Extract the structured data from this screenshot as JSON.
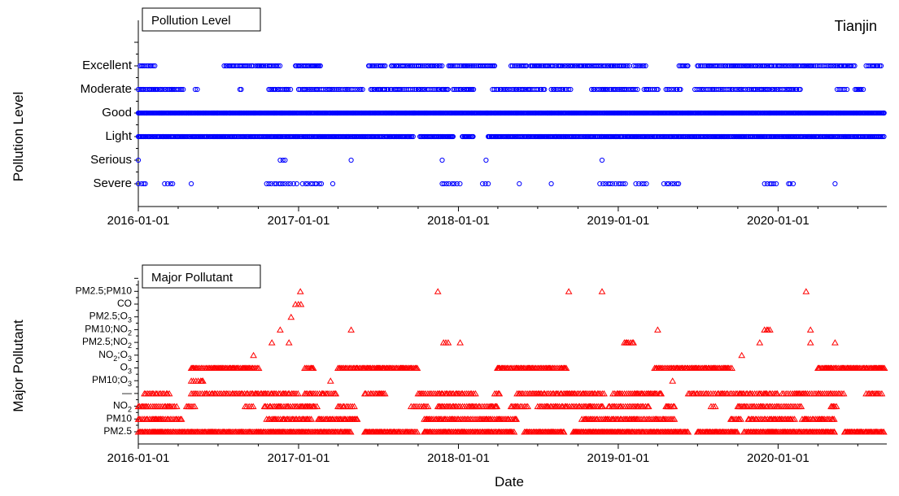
{
  "chart_data": [
    {
      "type": "scatter",
      "title": "Pollution Level",
      "annotation": "Tianjin",
      "xlabel": "",
      "ylabel": "Pollution Level",
      "x_type": "date",
      "xlim": [
        "2016-01-01",
        "2020-08-31"
      ],
      "x_ticks": [
        "2016-01-01",
        "2017-01-01",
        "2018-01-01",
        "2019-01-01",
        "2020-01-01"
      ],
      "y_categories": [
        "Severe",
        "Serious",
        "Light",
        "Good",
        "Moderate",
        "Excellent"
      ],
      "marker": "circle",
      "color": "#0000ff",
      "series": [
        {
          "category": "Excellent",
          "ranges": [
            [
              "2016-01-05",
              "2016-02-10"
            ],
            [
              "2016-07-15",
              "2016-09-20"
            ],
            [
              "2016-09-25",
              "2016-11-20"
            ],
            [
              "2016-12-25",
              "2017-02-20"
            ],
            [
              "2017-06-10",
              "2017-07-20"
            ],
            [
              "2017-08-01",
              "2017-11-25"
            ],
            [
              "2017-12-10",
              "2018-03-25"
            ],
            [
              "2018-05-01",
              "2018-06-10"
            ],
            [
              "2018-06-15",
              "2018-10-30"
            ],
            [
              "2018-11-01",
              "2019-01-30"
            ],
            [
              "2019-02-05",
              "2019-03-05"
            ],
            [
              "2019-05-20",
              "2019-06-10"
            ],
            [
              "2019-07-01",
              "2020-02-20"
            ],
            [
              "2020-02-25",
              "2020-06-25"
            ],
            [
              "2020-07-20",
              "2020-08-25"
            ]
          ]
        },
        {
          "category": "Moderate",
          "ranges": [
            [
              "2016-01-01",
              "2016-04-15"
            ],
            [
              "2016-05-10",
              "2016-05-15"
            ],
            [
              "2016-08-20",
              "2016-08-25"
            ],
            [
              "2016-10-25",
              "2016-12-15"
            ],
            [
              "2017-01-01",
              "2017-05-30"
            ],
            [
              "2017-06-15",
              "2017-12-10"
            ],
            [
              "2017-12-20",
              "2018-02-05"
            ],
            [
              "2018-03-20",
              "2018-07-20"
            ],
            [
              "2018-08-01",
              "2018-09-15"
            ],
            [
              "2018-11-01",
              "2019-02-15"
            ],
            [
              "2019-03-01",
              "2019-04-05"
            ],
            [
              "2019-04-20",
              "2019-05-25"
            ],
            [
              "2019-06-25",
              "2020-02-25"
            ],
            [
              "2020-05-15",
              "2020-06-10"
            ],
            [
              "2020-06-25",
              "2020-07-15"
            ]
          ]
        },
        {
          "category": "Good",
          "ranges": [
            [
              "2016-01-01",
              "2020-08-31"
            ]
          ]
        },
        {
          "category": "Light",
          "ranges": [
            [
              "2016-01-01",
              "2017-09-20"
            ],
            [
              "2017-10-05",
              "2017-12-20"
            ],
            [
              "2018-01-10",
              "2018-02-05"
            ],
            [
              "2018-03-10",
              "2020-08-31"
            ]
          ]
        },
        {
          "category": "Serious",
          "ranges": [
            [
              "2016-01-01",
              "2016-01-02"
            ],
            [
              "2016-11-20",
              "2016-12-05"
            ],
            [
              "2017-05-01",
              "2017-05-02"
            ],
            [
              "2017-11-25",
              "2017-11-26"
            ],
            [
              "2018-03-05",
              "2018-03-06"
            ],
            [
              "2018-11-25",
              "2018-11-26"
            ]
          ]
        },
        {
          "category": "Severe",
          "ranges": [
            [
              "2016-01-01",
              "2016-01-20"
            ],
            [
              "2016-03-01",
              "2016-03-20"
            ],
            [
              "2016-05-01",
              "2016-05-02"
            ],
            [
              "2016-10-20",
              "2016-12-30"
            ],
            [
              "2017-01-10",
              "2017-02-25"
            ],
            [
              "2017-03-20",
              "2017-03-21"
            ],
            [
              "2017-11-25",
              "2018-01-05"
            ],
            [
              "2018-02-25",
              "2018-03-15"
            ],
            [
              "2018-05-20",
              "2018-05-21"
            ],
            [
              "2018-08-01",
              "2018-08-02"
            ],
            [
              "2018-11-20",
              "2019-01-20"
            ],
            [
              "2019-02-10",
              "2019-03-10"
            ],
            [
              "2019-04-15",
              "2019-05-20"
            ],
            [
              "2019-12-01",
              "2019-12-30"
            ],
            [
              "2020-01-25",
              "2020-02-05"
            ],
            [
              "2020-05-10",
              "2020-05-11"
            ]
          ]
        }
      ]
    },
    {
      "type": "scatter",
      "title": "Major Pollutant",
      "xlabel": "Date",
      "ylabel": "Major Pollutant",
      "x_type": "date",
      "xlim": [
        "2016-01-01",
        "2020-08-31"
      ],
      "x_ticks": [
        "2016-01-01",
        "2017-01-01",
        "2018-01-01",
        "2019-01-01",
        "2020-01-01"
      ],
      "y_categories": [
        "PM2.5",
        "PM10",
        "NO2",
        "—",
        "PM10;O3",
        "O3",
        "NO2;O3",
        "PM2.5;NO2",
        "PM10;NO2",
        "PM2.5;O3",
        "CO",
        "PM2.5;PM10"
      ],
      "marker": "triangle",
      "color": "#ff0000",
      "series": [
        {
          "category": "PM2.5",
          "ranges": [
            [
              "2016-01-01",
              "2017-05-01"
            ],
            [
              "2017-06-01",
              "2017-09-30"
            ],
            [
              "2017-10-15",
              "2018-05-10"
            ],
            [
              "2018-06-01",
              "2018-09-01"
            ],
            [
              "2018-09-20",
              "2019-06-10"
            ],
            [
              "2019-07-01",
              "2019-09-30"
            ],
            [
              "2019-10-15",
              "2020-05-10"
            ],
            [
              "2020-06-01",
              "2020-08-31"
            ]
          ]
        },
        {
          "category": "PM10",
          "ranges": [
            [
              "2016-01-01",
              "2016-04-10"
            ],
            [
              "2016-10-20",
              "2017-01-31"
            ],
            [
              "2017-02-15",
              "2017-05-15"
            ],
            [
              "2017-10-15",
              "2018-05-15"
            ],
            [
              "2018-10-10",
              "2019-05-10"
            ],
            [
              "2019-09-15",
              "2019-10-10"
            ],
            [
              "2019-10-25",
              "2020-02-10"
            ],
            [
              "2020-02-25",
              "2020-05-10"
            ]
          ]
        },
        {
          "category": "NO2",
          "ranges": [
            [
              "2016-01-01",
              "2016-03-31"
            ],
            [
              "2016-04-20",
              "2016-05-10"
            ],
            [
              "2016-09-01",
              "2016-09-20"
            ],
            [
              "2016-10-15",
              "2017-02-15"
            ],
            [
              "2017-04-01",
              "2017-05-10"
            ],
            [
              "2017-09-15",
              "2017-10-25"
            ],
            [
              "2017-11-15",
              "2018-03-31"
            ],
            [
              "2018-05-01",
              "2018-06-10"
            ],
            [
              "2018-07-01",
              "2018-11-30"
            ],
            [
              "2018-12-10",
              "2019-03-15"
            ],
            [
              "2019-04-20",
              "2019-05-10"
            ],
            [
              "2019-08-01",
              "2019-08-15"
            ],
            [
              "2019-10-01",
              "2020-02-25"
            ],
            [
              "2020-05-01",
              "2020-05-15"
            ]
          ]
        },
        {
          "category": "—",
          "ranges": [
            [
              "2016-01-15",
              "2016-03-15"
            ],
            [
              "2016-05-01",
              "2016-12-31"
            ],
            [
              "2017-01-15",
              "2017-03-31"
            ],
            [
              "2017-06-01",
              "2017-07-20"
            ],
            [
              "2017-10-01",
              "2018-02-10"
            ],
            [
              "2018-03-25",
              "2018-04-05"
            ],
            [
              "2018-05-15",
              "2018-11-30"
            ],
            [
              "2018-12-20",
              "2019-04-10"
            ],
            [
              "2019-06-10",
              "2019-12-31"
            ],
            [
              "2020-01-10",
              "2020-05-31"
            ],
            [
              "2020-07-20",
              "2020-08-25"
            ]
          ]
        },
        {
          "category": "PM10;O3",
          "ranges": [
            [
              "2016-05-01",
              "2016-05-31"
            ],
            [
              "2017-03-15",
              "2017-03-16"
            ],
            [
              "2019-05-05",
              "2019-05-06"
            ]
          ]
        },
        {
          "category": "O3",
          "ranges": [
            [
              "2016-05-01",
              "2016-10-05"
            ],
            [
              "2017-01-15",
              "2017-02-05"
            ],
            [
              "2017-04-01",
              "2017-09-30"
            ],
            [
              "2018-03-31",
              "2018-09-05"
            ],
            [
              "2019-03-25",
              "2019-09-20"
            ],
            [
              "2020-04-01",
              "2020-08-31"
            ]
          ]
        },
        {
          "category": "NO2;O3",
          "ranges": [
            [
              "2016-09-20",
              "2016-09-21"
            ],
            [
              "2019-10-10",
              "2019-10-11"
            ]
          ]
        },
        {
          "category": "PM2.5;NO2",
          "ranges": [
            [
              "2016-11-01",
              "2016-11-02"
            ],
            [
              "2016-12-10",
              "2016-12-11"
            ],
            [
              "2017-11-28",
              "2017-12-10"
            ],
            [
              "2018-01-05",
              "2018-01-06"
            ],
            [
              "2019-01-15",
              "2019-02-05"
            ],
            [
              "2019-11-20",
              "2019-11-21"
            ],
            [
              "2020-03-15",
              "2020-03-16"
            ],
            [
              "2020-05-10",
              "2020-05-11"
            ]
          ]
        },
        {
          "category": "PM10;NO2",
          "ranges": [
            [
              "2016-11-20",
              "2016-11-21"
            ],
            [
              "2017-05-01",
              "2017-05-02"
            ],
            [
              "2019-04-01",
              "2019-04-02"
            ],
            [
              "2019-12-01",
              "2019-12-15"
            ],
            [
              "2020-03-15",
              "2020-03-16"
            ]
          ]
        },
        {
          "category": "PM2.5;O3",
          "ranges": [
            [
              "2016-12-15",
              "2016-12-16"
            ]
          ]
        },
        {
          "category": "CO",
          "ranges": [
            [
              "2016-12-25",
              "2017-01-15"
            ]
          ]
        },
        {
          "category": "PM2.5;PM10",
          "ranges": [
            [
              "2017-01-05",
              "2017-01-06"
            ],
            [
              "2017-11-15",
              "2017-11-16"
            ],
            [
              "2018-09-10",
              "2018-09-11"
            ],
            [
              "2018-11-25",
              "2018-11-26"
            ],
            [
              "2020-03-05",
              "2020-03-06"
            ]
          ]
        }
      ]
    }
  ]
}
